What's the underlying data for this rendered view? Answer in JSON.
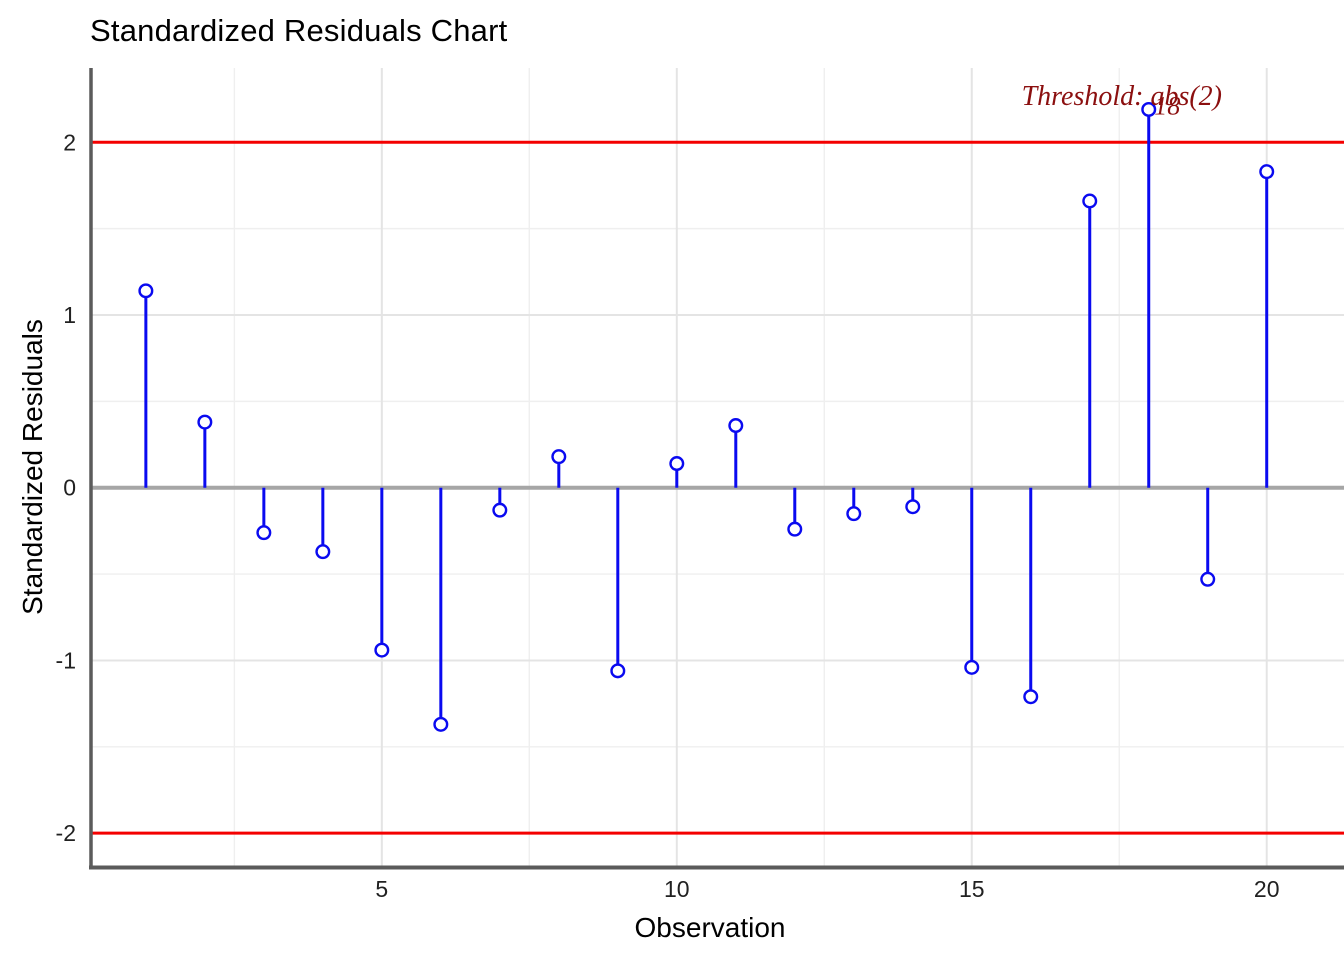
{
  "page": {
    "background": "#FFFFFF"
  },
  "chart_data": {
    "type": "lollipop",
    "title": "Standardized Residuals Chart",
    "xlabel": "Observation",
    "ylabel": "Standardized Residuals",
    "x": [
      1,
      2,
      3,
      4,
      5,
      6,
      7,
      8,
      9,
      10,
      11,
      12,
      13,
      14,
      15,
      16,
      17,
      18,
      19,
      20
    ],
    "values": [
      1.14,
      0.38,
      -0.26,
      -0.37,
      -0.94,
      -1.37,
      -0.13,
      0.18,
      -1.06,
      0.14,
      0.36,
      -0.24,
      -0.15,
      -0.11,
      -1.04,
      -1.21,
      1.66,
      2.19,
      -0.53,
      1.83
    ],
    "threshold": 2,
    "threshold_label": "Threshold: abs(2)",
    "outlier_labels": [
      {
        "x": 18,
        "label": "18"
      }
    ],
    "x_ticks": [
      5,
      10,
      15,
      20
    ],
    "x_minor_ticks": [
      2.5,
      7.5,
      12.5,
      17.5
    ],
    "y_ticks": [
      -2,
      -1,
      0,
      1,
      2
    ],
    "y_minor_ticks": [
      -1.5,
      -0.5,
      0.5,
      1.5
    ],
    "x_range": [
      0.07,
      21.31
    ],
    "y_range": [
      -2.19,
      2.43
    ],
    "grid": true,
    "legend": false,
    "colors": {
      "stem": "#0A0AF0",
      "point_fill": "#FFFFFF",
      "threshold_line": "#F40000",
      "zero_line": "#A6A6A6",
      "annotation": "#8B0F0F",
      "grid_major": "#E4E4E4",
      "grid_minor": "#EFEFEF",
      "axis_line": "#5B5B5B",
      "tick_text": "#212121",
      "title_text": "#000000"
    }
  }
}
